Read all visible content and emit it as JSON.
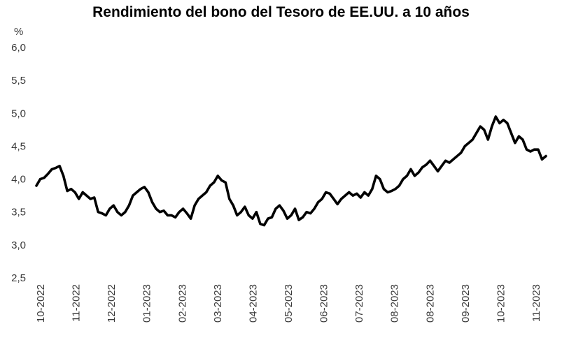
{
  "chart_data": {
    "type": "line",
    "title": "Rendimiento del bono del Tesoro de EE.UU. a 10 años",
    "ylabel": "%",
    "ylim": [
      2.5,
      6.0
    ],
    "yticks": [
      "2,5",
      "3,0",
      "3,5",
      "4,0",
      "4,5",
      "5,0",
      "5,5",
      "6,0"
    ],
    "xticks": [
      "10-2022",
      "11-2022",
      "12-2022",
      "01-2023",
      "02-2023",
      "03-2023",
      "04-2023",
      "05-2023",
      "06-2023",
      "07-2023",
      "08-2023",
      "08-2023",
      "09-2023",
      "10-2023",
      "11-2023"
    ],
    "grid": false,
    "legend": "none",
    "series_color": "#000000",
    "series": [
      {
        "values": [
          3.9,
          4.0,
          4.02,
          4.08,
          4.15,
          4.17,
          4.2,
          4.05,
          3.82,
          3.85,
          3.8,
          3.7,
          3.8,
          3.75,
          3.7,
          3.72,
          3.5,
          3.48,
          3.45,
          3.55,
          3.6,
          3.5,
          3.45,
          3.5,
          3.6,
          3.75,
          3.8,
          3.85,
          3.88,
          3.8,
          3.65,
          3.55,
          3.5,
          3.52,
          3.45,
          3.45,
          3.42,
          3.5,
          3.55,
          3.48,
          3.4,
          3.6,
          3.7,
          3.75,
          3.8,
          3.9,
          3.95,
          4.05,
          3.98,
          3.95,
          3.7,
          3.6,
          3.45,
          3.5,
          3.58,
          3.45,
          3.4,
          3.5,
          3.32,
          3.3,
          3.4,
          3.42,
          3.55,
          3.6,
          3.52,
          3.4,
          3.45,
          3.55,
          3.38,
          3.42,
          3.5,
          3.48,
          3.55,
          3.65,
          3.7,
          3.8,
          3.78,
          3.7,
          3.62,
          3.7,
          3.75,
          3.8,
          3.75,
          3.78,
          3.72,
          3.8,
          3.75,
          3.85,
          4.05,
          4.0,
          3.85,
          3.8,
          3.82,
          3.85,
          3.9,
          4.0,
          4.05,
          4.15,
          4.05,
          4.1,
          4.18,
          4.22,
          4.28,
          4.2,
          4.12,
          4.2,
          4.28,
          4.25,
          4.3,
          4.35,
          4.4,
          4.5,
          4.55,
          4.6,
          4.7,
          4.8,
          4.75,
          4.6,
          4.8,
          4.95,
          4.85,
          4.9,
          4.85,
          4.7,
          4.55,
          4.65,
          4.6,
          4.45,
          4.42,
          4.45,
          4.45,
          4.3,
          4.35
        ]
      }
    ]
  }
}
